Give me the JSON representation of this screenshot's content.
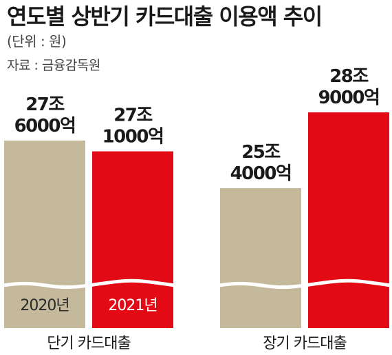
{
  "header": {
    "title": "연도별 상반기 카드대출 이용액 추이",
    "unit": "(단위 : 원)",
    "source": "자료 : 금융감독원"
  },
  "colors": {
    "year_2020": "#c5b99c",
    "year_2021": "#e20a14",
    "text": "#1a1a1a"
  },
  "chart_data": {
    "type": "bar",
    "title": "연도별 상반기 카드대출 이용액 추이",
    "unit": "(단위 : 원)",
    "source": "자료 : 금융감독원",
    "categories": [
      "단기 카드대출",
      "장기 카드대출"
    ],
    "series": [
      {
        "name": "2020년",
        "values": [
          276000,
          254000
        ],
        "labels": [
          "27조\n6000억",
          "25조\n4000억"
        ]
      },
      {
        "name": "2021년",
        "values": [
          271000,
          289000
        ],
        "labels": [
          "27조\n1000억",
          "28조\n9000억"
        ]
      }
    ],
    "value_unit": "억원",
    "axis_break": true,
    "grid": false
  }
}
